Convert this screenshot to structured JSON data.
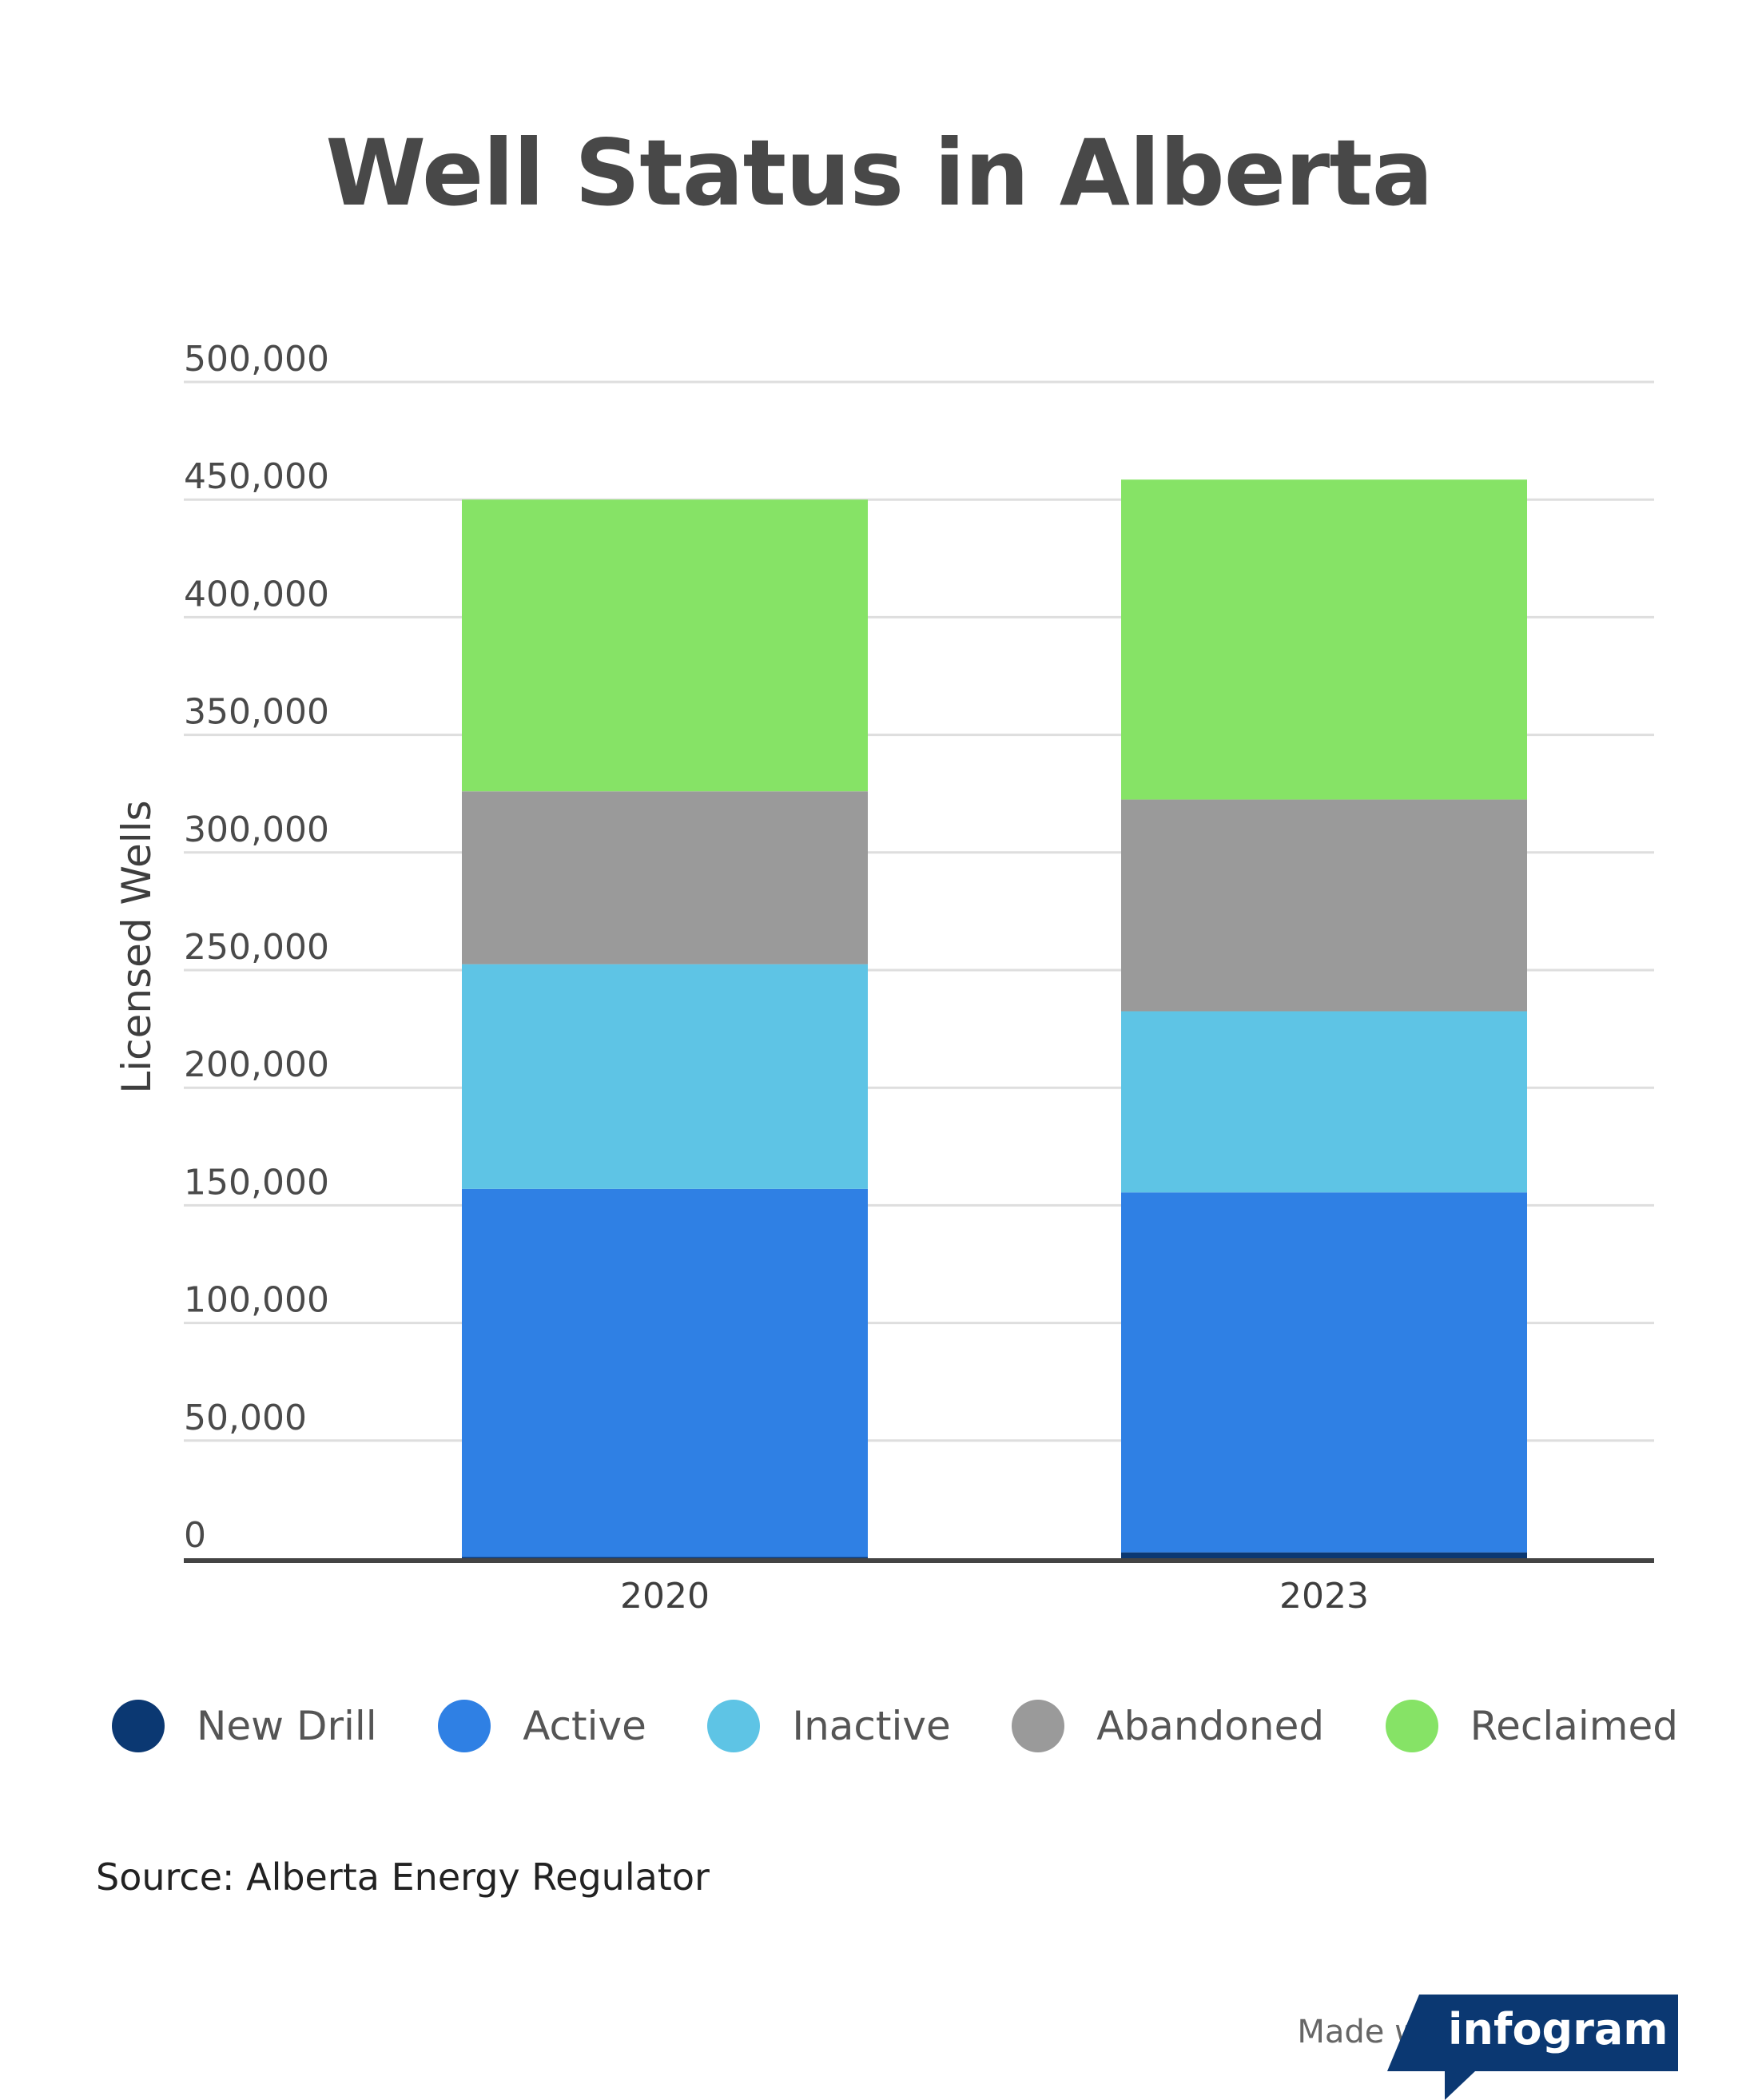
{
  "chart_data": {
    "type": "bar",
    "stacked": true,
    "title": "Well Status in Alberta",
    "ylabel": "Licensed Wells",
    "xlabel": "",
    "categories": [
      "2020",
      "2023"
    ],
    "ylim": [
      0,
      500000
    ],
    "yticks": [
      "0",
      "50,000",
      "100,000",
      "150,000",
      "200,000",
      "250,000",
      "300,000",
      "350,000",
      "400,000",
      "450,000",
      "500,000"
    ],
    "grid": true,
    "legend_position": "bottom",
    "series": [
      {
        "name": "New Drill",
        "color": "#0b3872",
        "values": [
          500,
          2500
        ]
      },
      {
        "name": "Active",
        "color": "#2f80e4",
        "values": [
          156500,
          153000
        ]
      },
      {
        "name": "Inactive",
        "color": "#5ec4e5",
        "values": [
          95500,
          77000
        ]
      },
      {
        "name": "Abandoned",
        "color": "#9a9a9a",
        "values": [
          73500,
          90000
        ]
      },
      {
        "name": "Reclaimed",
        "color": "#86e366",
        "values": [
          124000,
          136000
        ]
      }
    ]
  },
  "source": "Source: Alberta Energy Regulator",
  "footer": {
    "made_with": "Made with",
    "brand": "infogram",
    "brand_color": "#0b3872"
  }
}
